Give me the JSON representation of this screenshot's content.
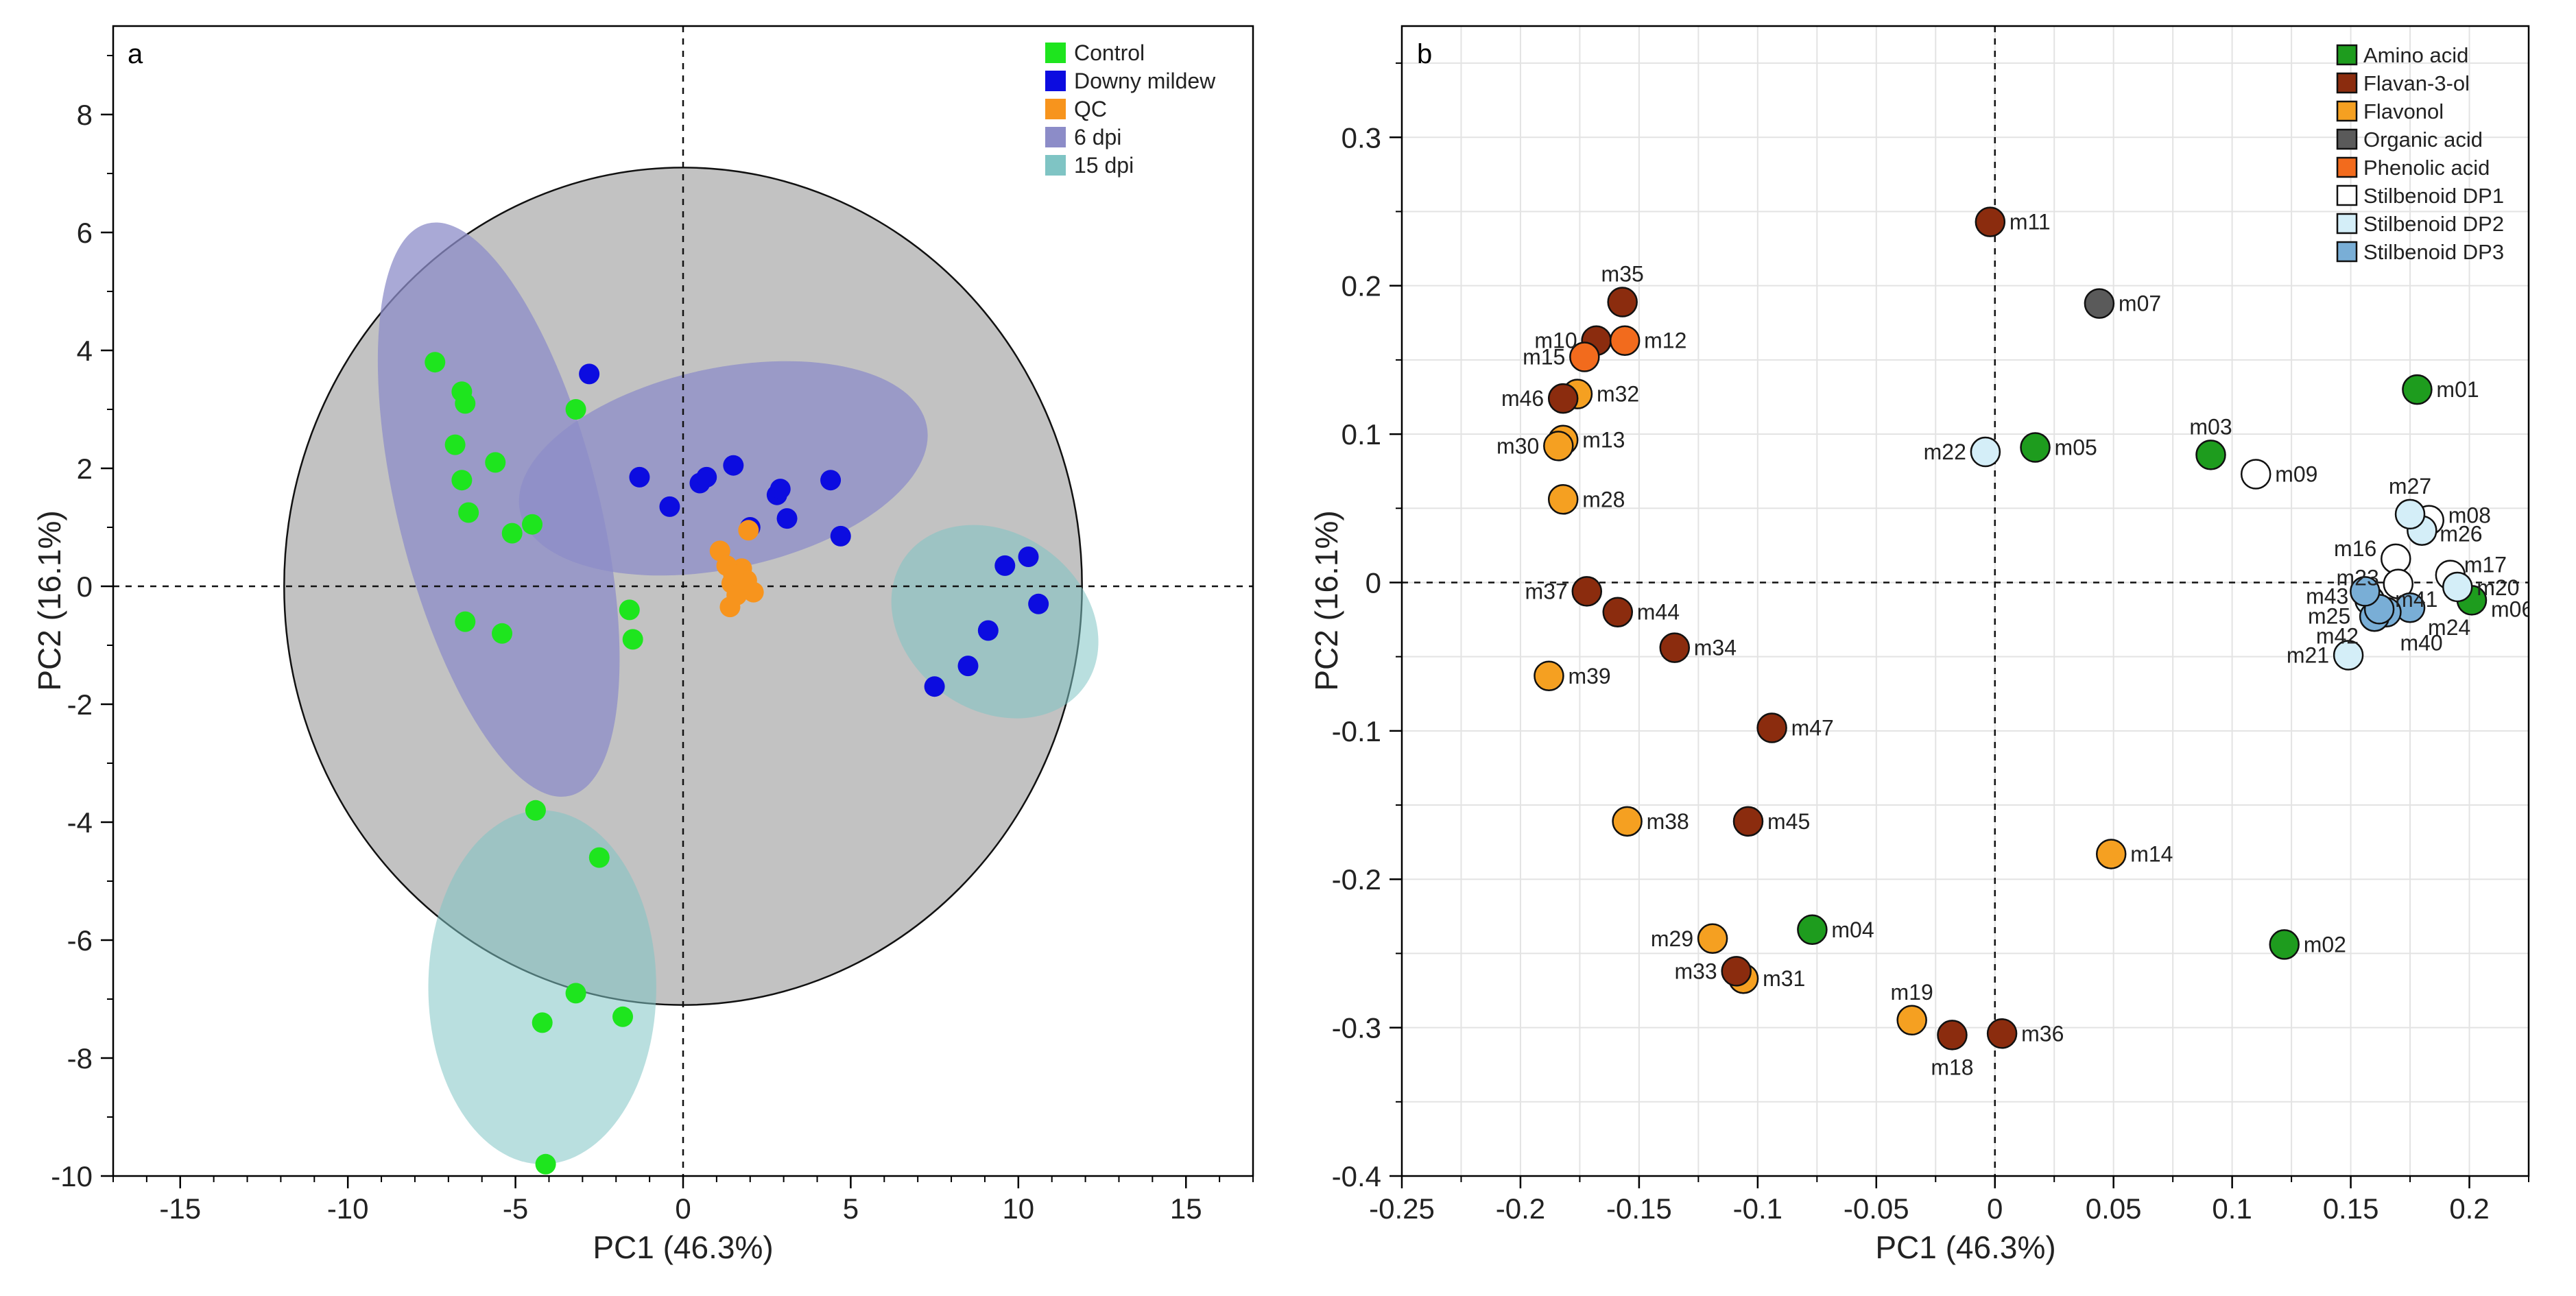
{
  "chart_data": [
    {
      "panel": "a",
      "type": "scatter",
      "xlabel": "PC1 (46.3%)",
      "ylabel": "PC2 (16.1%)",
      "xlim": [
        -17,
        17
      ],
      "ylim": [
        -10,
        9.5
      ],
      "xticks": [
        -15,
        -10,
        -5,
        0,
        5,
        10,
        15
      ],
      "yticks": [
        -10,
        -8,
        -6,
        -4,
        -2,
        0,
        2,
        4,
        6,
        8
      ],
      "legend_position": "top-right",
      "legend": [
        {
          "label": "Control",
          "color": "#1ee51e"
        },
        {
          "label": "Downy mildew",
          "color": "#0c0ce0"
        },
        {
          "label": "QC",
          "color": "#f7941d"
        },
        {
          "label": "6 dpi",
          "color": "#8c8cc8"
        },
        {
          "label": "15 dpi",
          "color": "#7fc4c4"
        }
      ],
      "hotelling_ellipse": {
        "cx": 0,
        "cy": 0,
        "rx": 11.9,
        "ry": 7.1
      },
      "group_ellipses": [
        {
          "group": "6 dpi",
          "cx": -5.5,
          "cy": 1.3,
          "rx": 3.0,
          "ry": 5.0,
          "angle_deg": -14
        },
        {
          "group": "6 dpi",
          "cx": 1.2,
          "cy": 2.0,
          "rx": 6.2,
          "ry": 1.7,
          "angle_deg": -12
        },
        {
          "group": "15 dpi",
          "cx": 9.3,
          "cy": -0.6,
          "rx": 3.3,
          "ry": 1.5,
          "angle_deg": 36
        },
        {
          "group": "15 dpi",
          "cx": -4.2,
          "cy": -6.8,
          "rx": 3.4,
          "ry": 3.0,
          "angle_deg": 0
        }
      ],
      "series": [
        {
          "name": "Control",
          "color": "#1ee51e",
          "points": [
            [
              -7.4,
              3.8
            ],
            [
              -6.6,
              3.3
            ],
            [
              -6.5,
              3.1
            ],
            [
              -6.8,
              2.4
            ],
            [
              -5.6,
              2.1
            ],
            [
              -6.6,
              1.8
            ],
            [
              -6.4,
              1.25
            ],
            [
              -5.1,
              0.9
            ],
            [
              -4.5,
              1.05
            ],
            [
              -3.2,
              3.0
            ],
            [
              -6.5,
              -0.6
            ],
            [
              -5.4,
              -0.8
            ],
            [
              -1.6,
              -0.4
            ],
            [
              -1.5,
              -0.9
            ],
            [
              -4.4,
              -3.8
            ],
            [
              -2.5,
              -4.6
            ],
            [
              -3.2,
              -6.9
            ],
            [
              -4.2,
              -7.4
            ],
            [
              -1.8,
              -7.3
            ],
            [
              -4.1,
              -9.8
            ]
          ]
        },
        {
          "name": "Downy mildew",
          "color": "#0c0ce0",
          "points": [
            [
              -2.8,
              3.6
            ],
            [
              -1.3,
              1.85
            ],
            [
              -0.4,
              1.35
            ],
            [
              0.5,
              1.75
            ],
            [
              0.7,
              1.85
            ],
            [
              1.5,
              2.05
            ],
            [
              2.8,
              1.55
            ],
            [
              2.9,
              1.65
            ],
            [
              3.1,
              1.15
            ],
            [
              4.4,
              1.8
            ],
            [
              4.7,
              0.85
            ],
            [
              2.0,
              1.0
            ],
            [
              7.5,
              -1.7
            ],
            [
              8.5,
              -1.35
            ],
            [
              9.1,
              -0.75
            ],
            [
              9.6,
              0.35
            ],
            [
              10.3,
              0.5
            ],
            [
              10.6,
              -0.3
            ]
          ]
        },
        {
          "name": "QC",
          "color": "#f7941d",
          "points": [
            [
              1.1,
              0.6
            ],
            [
              1.3,
              0.35
            ],
            [
              1.45,
              0.05
            ],
            [
              1.6,
              -0.15
            ],
            [
              1.4,
              -0.35
            ],
            [
              1.75,
              0.3
            ],
            [
              1.9,
              0.1
            ],
            [
              2.1,
              -0.1
            ],
            [
              1.5,
              0.2
            ],
            [
              1.95,
              0.95
            ]
          ]
        }
      ]
    },
    {
      "panel": "b",
      "type": "scatter",
      "xlabel": "PC1 (46.3%)",
      "ylabel": "PC2 (16.1%)",
      "xlim": [
        -0.25,
        0.225
      ],
      "ylim": [
        -0.4,
        0.375
      ],
      "xticks": [
        -0.25,
        -0.2,
        -0.15,
        -0.1,
        -0.05,
        0,
        0.05,
        0.1,
        0.15,
        0.2
      ],
      "xtick_labels": [
        "-0.25",
        "-0.2",
        "-0.15",
        "-0.1",
        "-0.05",
        "0",
        "0.05",
        "0.1",
        "0.15",
        "0.2"
      ],
      "yticks": [
        -0.4,
        -0.3,
        -0.2,
        -0.1,
        0,
        0.1,
        0.2,
        0.3
      ],
      "ytick_labels": [
        "-0.4",
        "-0.3",
        "-0.2",
        "-0.1",
        "0",
        "0.1",
        "0.2",
        "0.3"
      ],
      "legend_position": "top-right",
      "legend": [
        {
          "label": "Amino acid",
          "color": "#1e9c1e"
        },
        {
          "label": "Flavan-3-ol",
          "color": "#8b2c0e"
        },
        {
          "label": "Flavonol",
          "color": "#f5a021"
        },
        {
          "label": "Organic acid",
          "color": "#5a5a5a"
        },
        {
          "label": "Phenolic acid",
          "color": "#f26b1d"
        },
        {
          "label": "Stilbenoid DP1",
          "color": "#ffffff"
        },
        {
          "label": "Stilbenoid DP2",
          "color": "#d4eef8"
        },
        {
          "label": "Stilbenoid DP3",
          "color": "#79aed6"
        }
      ],
      "points": [
        {
          "label": "m01",
          "class": "Amino acid",
          "x": 0.178,
          "y": 0.13
        },
        {
          "label": "m02",
          "class": "Amino acid",
          "x": 0.122,
          "y": -0.244
        },
        {
          "label": "m03",
          "class": "Amino acid",
          "x": 0.091,
          "y": 0.086
        },
        {
          "label": "m04",
          "class": "Amino acid",
          "x": -0.077,
          "y": -0.234
        },
        {
          "label": "m05",
          "class": "Amino acid",
          "x": 0.017,
          "y": 0.091
        },
        {
          "label": "m06",
          "class": "Amino acid",
          "x": 0.201,
          "y": -0.012
        },
        {
          "label": "m07",
          "class": "Organic acid",
          "x": 0.044,
          "y": 0.188
        },
        {
          "label": "m08",
          "class": "Stilbenoid DP1",
          "x": 0.183,
          "y": 0.042
        },
        {
          "label": "m09",
          "class": "Stilbenoid DP1",
          "x": 0.11,
          "y": 0.073
        },
        {
          "label": "m10",
          "class": "Flavan-3-ol",
          "x": -0.168,
          "y": 0.163
        },
        {
          "label": "m11",
          "class": "Flavan-3-ol",
          "x": -0.002,
          "y": 0.243
        },
        {
          "label": "m12",
          "class": "Phenolic acid",
          "x": -0.156,
          "y": 0.163
        },
        {
          "label": "m13",
          "class": "Flavonol",
          "x": -0.182,
          "y": 0.096
        },
        {
          "label": "m14",
          "class": "Flavonol",
          "x": 0.049,
          "y": -0.183
        },
        {
          "label": "m15",
          "class": "Phenolic acid",
          "x": -0.173,
          "y": 0.152
        },
        {
          "label": "m16",
          "class": "Stilbenoid DP1",
          "x": 0.169,
          "y": 0.016
        },
        {
          "label": "m17",
          "class": "Stilbenoid DP1",
          "x": 0.192,
          "y": 0.005
        },
        {
          "label": "m18",
          "class": "Flavan-3-ol",
          "x": -0.018,
          "y": -0.305
        },
        {
          "label": "m19",
          "class": "Flavonol",
          "x": -0.035,
          "y": -0.295
        },
        {
          "label": "m20",
          "class": "Stilbenoid DP2",
          "x": 0.195,
          "y": -0.003
        },
        {
          "label": "m21",
          "class": "Stilbenoid DP2",
          "x": 0.149,
          "y": -0.049
        },
        {
          "label": "m22",
          "class": "Stilbenoid DP2",
          "x": -0.004,
          "y": 0.088
        },
        {
          "label": "m23",
          "class": "Stilbenoid DP1",
          "x": 0.17,
          "y": -0.001
        },
        {
          "label": "m24",
          "class": "Stilbenoid DP3",
          "x": 0.175,
          "y": -0.017
        },
        {
          "label": "m25",
          "class": "Stilbenoid DP2",
          "x": 0.158,
          "y": -0.012
        },
        {
          "label": "m26",
          "class": "Stilbenoid DP2",
          "x": 0.18,
          "y": 0.035
        },
        {
          "label": "m27",
          "class": "Stilbenoid DP2",
          "x": 0.175,
          "y": 0.046
        },
        {
          "label": "m28",
          "class": "Flavonol",
          "x": -0.182,
          "y": 0.056
        },
        {
          "label": "m29",
          "class": "Flavonol",
          "x": -0.119,
          "y": -0.24
        },
        {
          "label": "m30",
          "class": "Flavonol",
          "x": -0.184,
          "y": 0.092
        },
        {
          "label": "m31",
          "class": "Flavonol",
          "x": -0.106,
          "y": -0.267
        },
        {
          "label": "m32",
          "class": "Flavonol",
          "x": -0.176,
          "y": 0.127
        },
        {
          "label": "m33",
          "class": "Flavan-3-ol",
          "x": -0.109,
          "y": -0.262
        },
        {
          "label": "m34",
          "class": "Flavan-3-ol",
          "x": -0.135,
          "y": -0.044
        },
        {
          "label": "m35",
          "class": "Flavan-3-ol",
          "x": -0.157,
          "y": 0.189
        },
        {
          "label": "m36",
          "class": "Flavan-3-ol",
          "x": 0.003,
          "y": -0.304
        },
        {
          "label": "m37",
          "class": "Flavan-3-ol",
          "x": -0.172,
          "y": -0.006
        },
        {
          "label": "m38",
          "class": "Flavonol",
          "x": -0.155,
          "y": -0.161
        },
        {
          "label": "m39",
          "class": "Flavonol",
          "x": -0.188,
          "y": -0.063
        },
        {
          "label": "m40",
          "class": "Stilbenoid DP3",
          "x": 0.165,
          "y": -0.02
        },
        {
          "label": "m41",
          "class": "Stilbenoid DP3",
          "x": 0.16,
          "y": -0.023
        },
        {
          "label": "m42",
          "class": "Stilbenoid DP3",
          "x": 0.162,
          "y": -0.018
        },
        {
          "label": "m43",
          "class": "Stilbenoid DP3",
          "x": 0.156,
          "y": -0.006
        },
        {
          "label": "m44",
          "class": "Flavan-3-ol",
          "x": -0.159,
          "y": -0.02
        },
        {
          "label": "m45",
          "class": "Flavan-3-ol",
          "x": -0.104,
          "y": -0.161
        },
        {
          "label": "m46",
          "class": "Flavan-3-ol",
          "x": -0.182,
          "y": 0.124
        },
        {
          "label": "m47",
          "class": "Flavan-3-ol",
          "x": -0.094,
          "y": -0.098
        }
      ]
    }
  ]
}
